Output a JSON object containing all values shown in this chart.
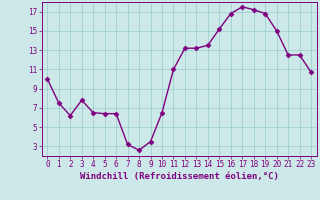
{
  "x": [
    0,
    1,
    2,
    3,
    4,
    5,
    6,
    7,
    8,
    9,
    10,
    11,
    12,
    13,
    14,
    15,
    16,
    17,
    18,
    19,
    20,
    21,
    22,
    23
  ],
  "y": [
    10.0,
    7.5,
    6.2,
    7.8,
    6.5,
    6.4,
    6.4,
    3.2,
    2.6,
    3.5,
    6.5,
    11.0,
    13.2,
    13.2,
    13.5,
    15.2,
    16.8,
    17.5,
    17.2,
    16.8,
    15.0,
    12.5,
    12.5,
    10.7
  ],
  "line_color": "#800080",
  "marker": "D",
  "markersize": 2.5,
  "linewidth": 1.0,
  "bg_color": "#cce8e8",
  "grid_color": "#99cccc",
  "xlabel": "Windchill (Refroidissement éolien,°C)",
  "xlabel_color": "#800080",
  "xlim": [
    -0.5,
    23.5
  ],
  "ylim": [
    2.0,
    18.0
  ],
  "yticks": [
    3,
    5,
    7,
    9,
    11,
    13,
    15,
    17
  ],
  "xticks": [
    0,
    1,
    2,
    3,
    4,
    5,
    6,
    7,
    8,
    9,
    10,
    11,
    12,
    13,
    14,
    15,
    16,
    17,
    18,
    19,
    20,
    21,
    22,
    23
  ],
  "tick_fontsize": 5.5,
  "xlabel_fontsize": 6.5
}
